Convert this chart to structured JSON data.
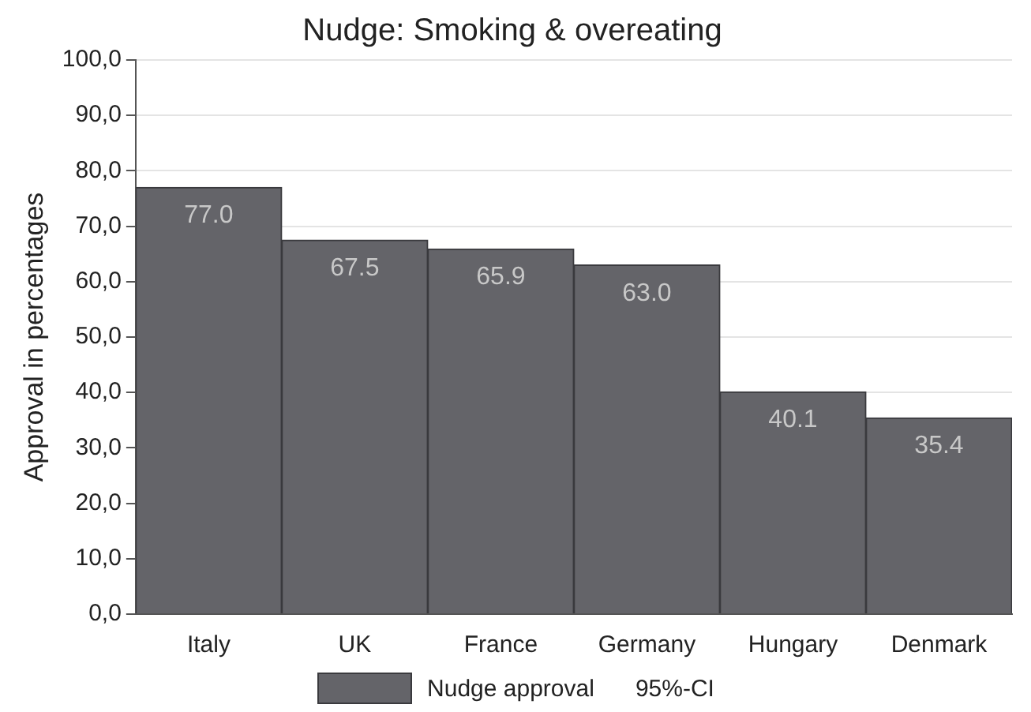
{
  "chart_data": {
    "type": "bar",
    "title": "Nudge: Smoking & overeating",
    "ylabel": "Approval in percentages",
    "categories": [
      "Italy",
      "UK",
      "France",
      "Germany",
      "Hungary",
      "Denmark"
    ],
    "series": [
      {
        "name": "Nudge approval",
        "color": "#646469",
        "values": [
          77.0,
          67.5,
          65.9,
          63.0,
          40.1,
          35.4
        ],
        "value_labels": [
          "77.0",
          "67.5",
          "65.9",
          "63.0",
          "40.1",
          "35.4"
        ]
      },
      {
        "name": "95%-CI",
        "type": "line",
        "color": "#000000",
        "values": [
          null,
          null,
          null,
          null,
          null,
          null
        ]
      }
    ],
    "ylim": [
      0,
      100
    ],
    "yticks": [
      {
        "value": 0,
        "label": "0,0"
      },
      {
        "value": 10,
        "label": "10,0"
      },
      {
        "value": 20,
        "label": "20,0"
      },
      {
        "value": 30,
        "label": "30,0"
      },
      {
        "value": 40,
        "label": "40,0"
      },
      {
        "value": 50,
        "label": "50,0"
      },
      {
        "value": 60,
        "label": "60,0"
      },
      {
        "value": 70,
        "label": "70,0"
      },
      {
        "value": 80,
        "label": "80,0"
      },
      {
        "value": 90,
        "label": "90,0"
      },
      {
        "value": 100,
        "label": "100,0"
      }
    ],
    "grid": "y",
    "legend": "bottom"
  }
}
